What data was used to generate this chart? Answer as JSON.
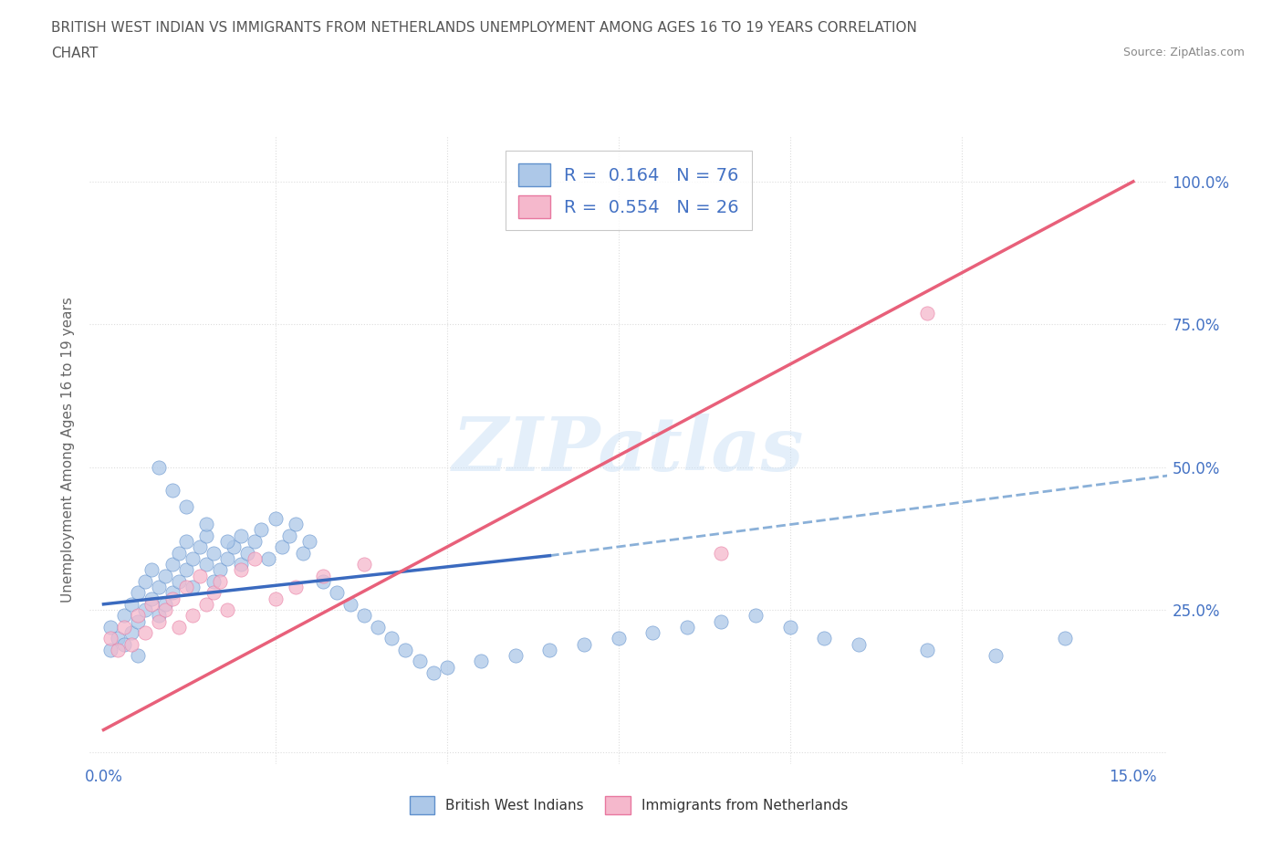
{
  "title_line1": "BRITISH WEST INDIAN VS IMMIGRANTS FROM NETHERLANDS UNEMPLOYMENT AMONG AGES 16 TO 19 YEARS CORRELATION",
  "title_line2": "CHART",
  "source_text": "Source: ZipAtlas.com",
  "ylabel": "Unemployment Among Ages 16 to 19 years",
  "xlim": [
    -0.002,
    0.155
  ],
  "ylim": [
    -0.02,
    1.08
  ],
  "xticks": [
    0.0,
    0.025,
    0.05,
    0.075,
    0.1,
    0.125,
    0.15
  ],
  "xticklabels": [
    "0.0%",
    "",
    "",
    "",
    "",
    "",
    "15.0%"
  ],
  "yticks": [
    0.0,
    0.25,
    0.5,
    0.75,
    1.0
  ],
  "yticklabels_right": [
    "",
    "25.0%",
    "50.0%",
    "75.0%",
    "100.0%"
  ],
  "watermark": "ZIPatlas",
  "legend_R1": "0.164",
  "legend_N1": "76",
  "legend_R2": "0.554",
  "legend_N2": "26",
  "series1_color": "#adc8e8",
  "series2_color": "#f5b8cc",
  "series1_edge": "#6090cc",
  "series2_edge": "#e878a0",
  "trendline1_color": "#3a6abf",
  "trendline2_color": "#e8607a",
  "dashed_line_color": "#8ab0d8",
  "grid_color": "#dddddd",
  "grid_style": "dotted",
  "background_color": "#ffffff",
  "blue_scatter_x": [
    0.001,
    0.001,
    0.002,
    0.003,
    0.003,
    0.004,
    0.004,
    0.005,
    0.005,
    0.005,
    0.006,
    0.006,
    0.007,
    0.007,
    0.008,
    0.008,
    0.009,
    0.009,
    0.01,
    0.01,
    0.011,
    0.011,
    0.012,
    0.012,
    0.013,
    0.013,
    0.014,
    0.015,
    0.015,
    0.016,
    0.016,
    0.017,
    0.018,
    0.019,
    0.02,
    0.02,
    0.021,
    0.022,
    0.023,
    0.024,
    0.025,
    0.026,
    0.027,
    0.028,
    0.029,
    0.03,
    0.032,
    0.034,
    0.036,
    0.038,
    0.04,
    0.042,
    0.044,
    0.046,
    0.048,
    0.05,
    0.055,
    0.06,
    0.065,
    0.07,
    0.075,
    0.08,
    0.085,
    0.09,
    0.095,
    0.1,
    0.105,
    0.11,
    0.12,
    0.13,
    0.008,
    0.01,
    0.012,
    0.015,
    0.018,
    0.14
  ],
  "blue_scatter_y": [
    0.22,
    0.18,
    0.2,
    0.24,
    0.19,
    0.26,
    0.21,
    0.28,
    0.23,
    0.17,
    0.3,
    0.25,
    0.32,
    0.27,
    0.29,
    0.24,
    0.31,
    0.26,
    0.33,
    0.28,
    0.35,
    0.3,
    0.37,
    0.32,
    0.34,
    0.29,
    0.36,
    0.38,
    0.33,
    0.35,
    0.3,
    0.32,
    0.34,
    0.36,
    0.38,
    0.33,
    0.35,
    0.37,
    0.39,
    0.34,
    0.41,
    0.36,
    0.38,
    0.4,
    0.35,
    0.37,
    0.3,
    0.28,
    0.26,
    0.24,
    0.22,
    0.2,
    0.18,
    0.16,
    0.14,
    0.15,
    0.16,
    0.17,
    0.18,
    0.19,
    0.2,
    0.21,
    0.22,
    0.23,
    0.24,
    0.22,
    0.2,
    0.19,
    0.18,
    0.17,
    0.5,
    0.46,
    0.43,
    0.4,
    0.37,
    0.2
  ],
  "pink_scatter_x": [
    0.001,
    0.002,
    0.003,
    0.004,
    0.005,
    0.006,
    0.007,
    0.008,
    0.009,
    0.01,
    0.011,
    0.012,
    0.013,
    0.014,
    0.015,
    0.016,
    0.017,
    0.018,
    0.02,
    0.022,
    0.025,
    0.028,
    0.032,
    0.038,
    0.09,
    0.12
  ],
  "pink_scatter_y": [
    0.2,
    0.18,
    0.22,
    0.19,
    0.24,
    0.21,
    0.26,
    0.23,
    0.25,
    0.27,
    0.22,
    0.29,
    0.24,
    0.31,
    0.26,
    0.28,
    0.3,
    0.25,
    0.32,
    0.34,
    0.27,
    0.29,
    0.31,
    0.33,
    0.35,
    0.77
  ],
  "trendline1_x": [
    0.0,
    0.065
  ],
  "trendline1_y": [
    0.26,
    0.345
  ],
  "trendline2_x": [
    0.0,
    0.15
  ],
  "trendline2_y": [
    0.04,
    1.0
  ],
  "dashed_line_x": [
    0.065,
    0.155
  ],
  "dashed_line_y": [
    0.345,
    0.485
  ],
  "bottom_legend_labels": [
    "British West Indians",
    "Immigrants from Netherlands"
  ]
}
